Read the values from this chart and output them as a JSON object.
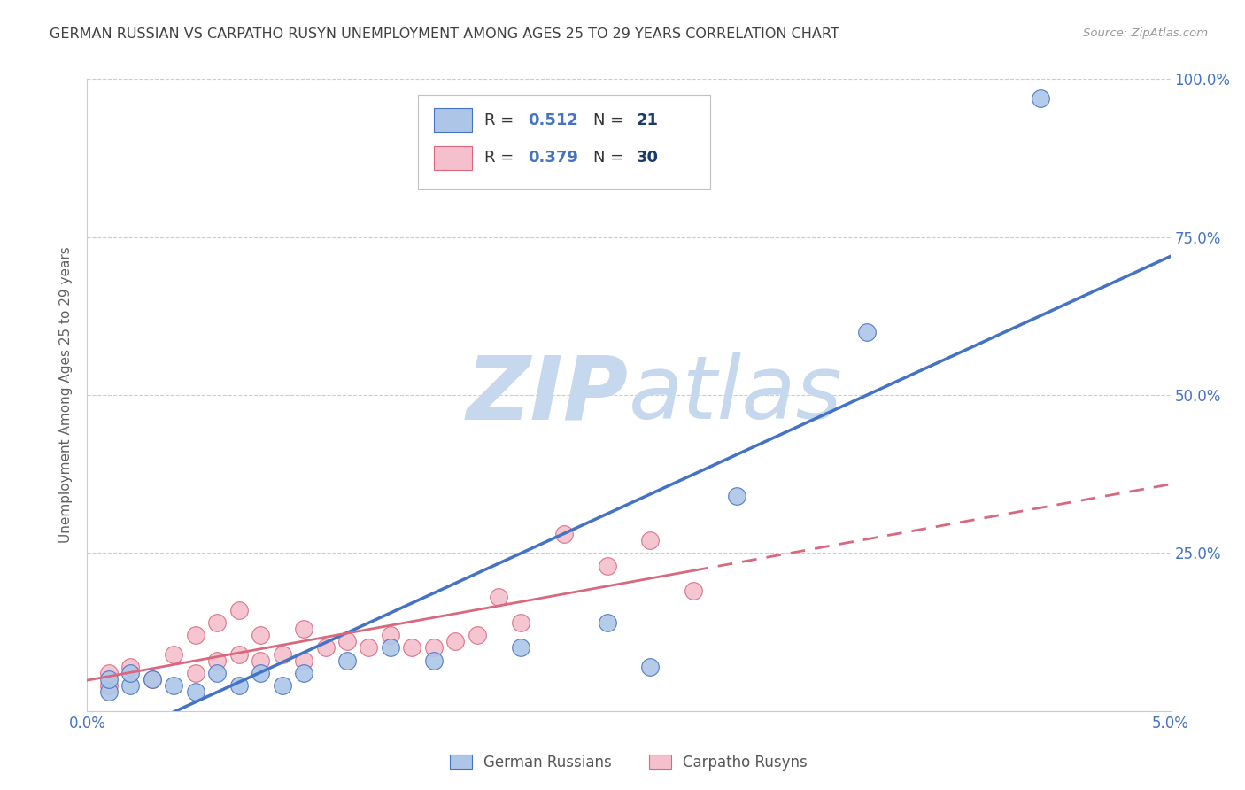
{
  "title": "GERMAN RUSSIAN VS CARPATHO RUSYN UNEMPLOYMENT AMONG AGES 25 TO 29 YEARS CORRELATION CHART",
  "source": "Source: ZipAtlas.com",
  "ylabel_label": "Unemployment Among Ages 25 to 29 years",
  "x_min": 0.0,
  "x_max": 0.05,
  "y_min": 0.0,
  "y_max": 1.0,
  "x_ticks": [
    0.0,
    0.01,
    0.02,
    0.03,
    0.04,
    0.05
  ],
  "x_tick_labels": [
    "0.0%",
    "",
    "",
    "",
    "",
    "5.0%"
  ],
  "y_ticks": [
    0.0,
    0.25,
    0.5,
    0.75,
    1.0
  ],
  "y_tick_labels": [
    "",
    "25.0%",
    "50.0%",
    "75.0%",
    "100.0%"
  ],
  "german_russian_color": "#adc6e8",
  "carpatho_rusyn_color": "#f5bfce",
  "german_russian_line_color": "#4472c4",
  "carpatho_rusyn_line_color": "#d9687e",
  "R_german": 0.512,
  "N_german": 21,
  "R_carpatho": 0.379,
  "N_carpatho": 30,
  "legend_label_german": "German Russians",
  "legend_label_carpatho": "Carpatho Rusyns",
  "watermark_zip": "ZIP",
  "watermark_atlas": "atlas",
  "watermark_color_zip": "#c5d8ee",
  "watermark_color_atlas": "#c5d8ee",
  "german_russian_x": [
    0.001,
    0.001,
    0.002,
    0.002,
    0.003,
    0.004,
    0.005,
    0.006,
    0.007,
    0.008,
    0.009,
    0.01,
    0.012,
    0.014,
    0.016,
    0.02,
    0.024,
    0.026,
    0.03,
    0.036,
    0.044
  ],
  "german_russian_y": [
    0.03,
    0.05,
    0.04,
    0.06,
    0.05,
    0.04,
    0.03,
    0.06,
    0.04,
    0.06,
    0.04,
    0.06,
    0.08,
    0.1,
    0.08,
    0.1,
    0.14,
    0.07,
    0.34,
    0.6,
    0.97
  ],
  "carpatho_rusyn_x": [
    0.001,
    0.001,
    0.002,
    0.003,
    0.004,
    0.005,
    0.005,
    0.006,
    0.006,
    0.007,
    0.007,
    0.008,
    0.008,
    0.009,
    0.01,
    0.01,
    0.011,
    0.012,
    0.013,
    0.014,
    0.015,
    0.016,
    0.017,
    0.018,
    0.019,
    0.02,
    0.022,
    0.024,
    0.026,
    0.028
  ],
  "carpatho_rusyn_y": [
    0.04,
    0.06,
    0.07,
    0.05,
    0.09,
    0.06,
    0.12,
    0.08,
    0.14,
    0.09,
    0.16,
    0.08,
    0.12,
    0.09,
    0.08,
    0.13,
    0.1,
    0.11,
    0.1,
    0.12,
    0.1,
    0.1,
    0.11,
    0.12,
    0.18,
    0.14,
    0.28,
    0.23,
    0.27,
    0.19
  ],
  "grid_color": "#cccccc",
  "background_color": "#ffffff",
  "title_color": "#404040",
  "axis_label_color": "#606060",
  "tick_label_color": "#4472c4",
  "legend_R_color": "#4472c4",
  "legend_N_color": "#1a3a6e"
}
